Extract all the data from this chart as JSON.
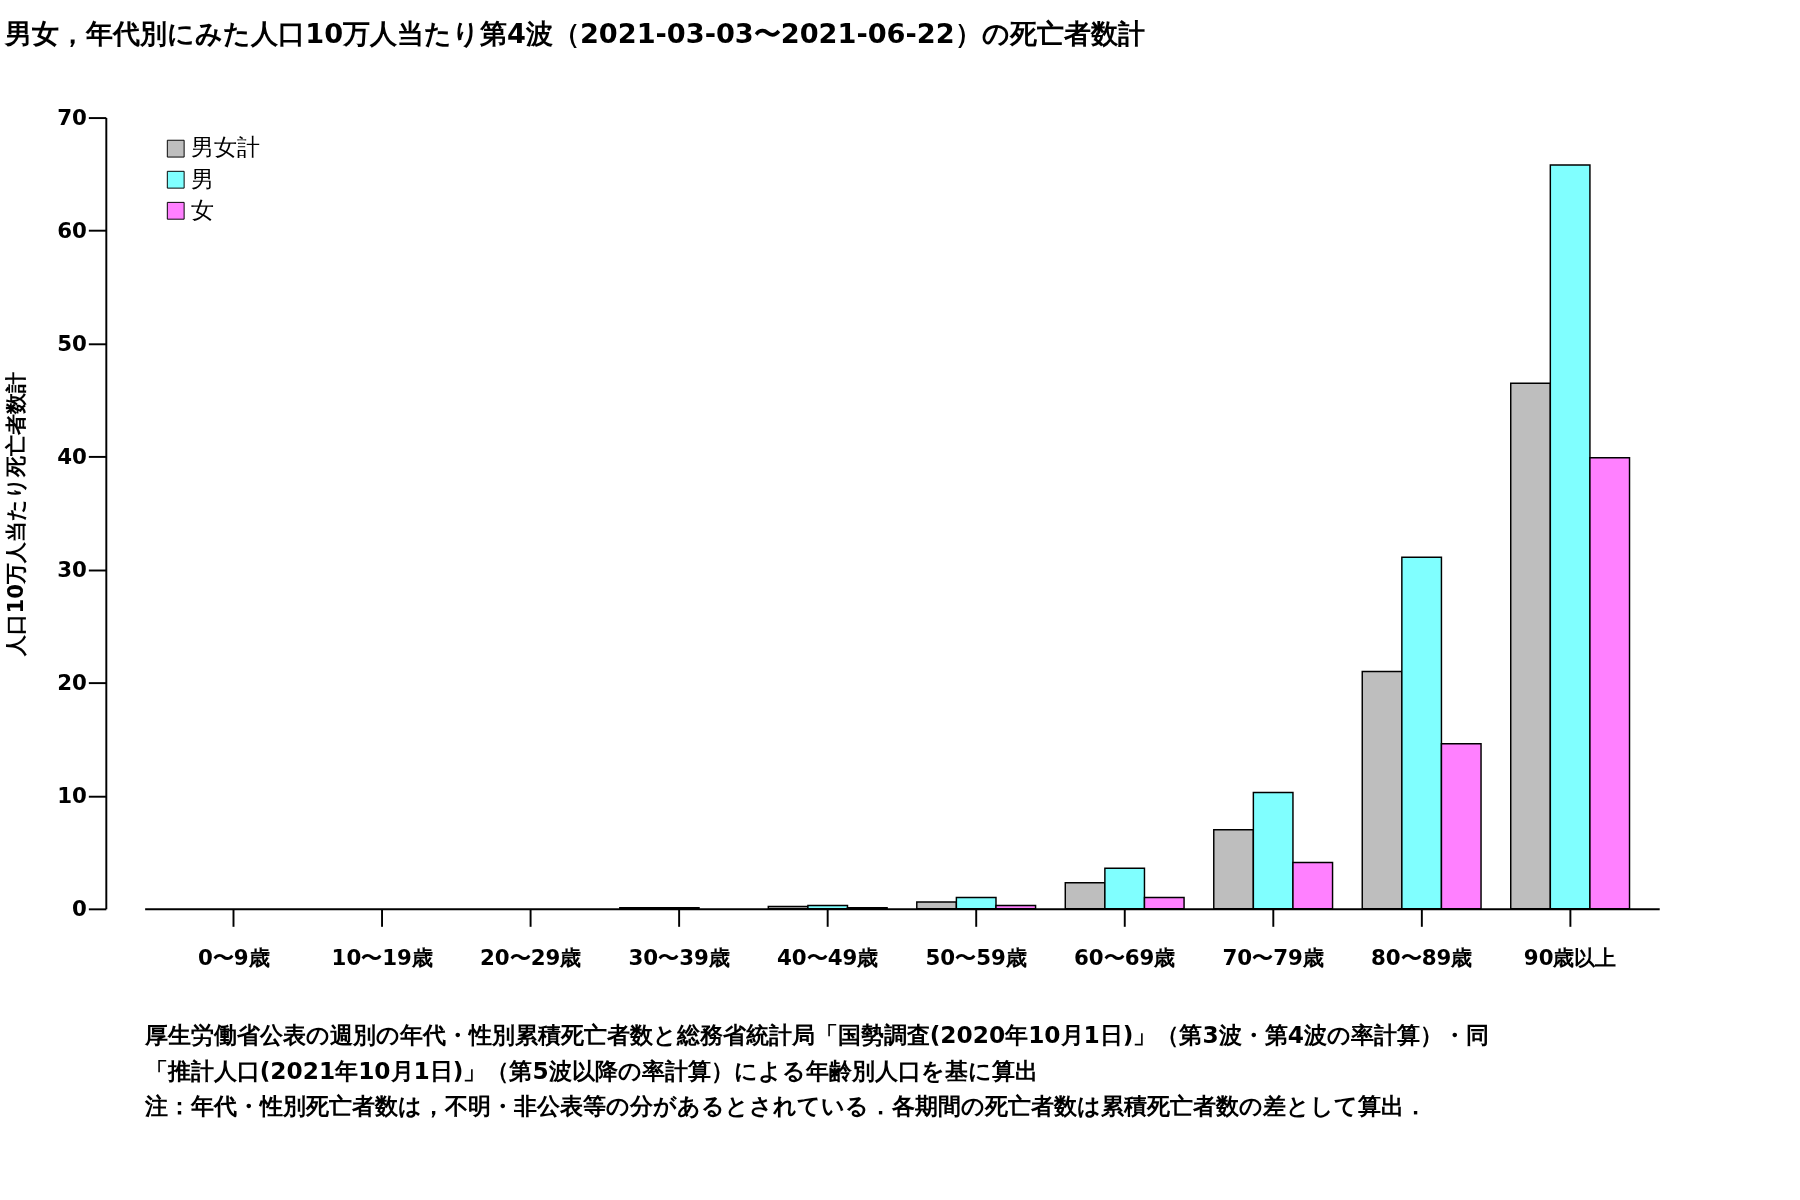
{
  "chart_data": {
    "type": "bar",
    "title": "男女，年代別にみた人口10万人当たり第4波（2021-03-03〜2021-06-22）の死亡者数計",
    "ylabel": "人口10万人当たり死亡者数計",
    "categories": [
      "0〜9歳",
      "10〜19歳",
      "20〜29歳",
      "30〜39歳",
      "40〜49歳",
      "50〜59歳",
      "60〜69歳",
      "70〜79歳",
      "80〜89歳",
      "90歳以上"
    ],
    "series": [
      {
        "name": "男女計",
        "color": "#bebebe",
        "values": [
          0,
          0,
          0,
          0.1,
          0.2,
          0.6,
          2.3,
          7.0,
          21.0,
          46.5
        ]
      },
      {
        "name": "男",
        "color": "#80ffff",
        "values": [
          0,
          0,
          0,
          0.1,
          0.3,
          1.0,
          3.6,
          10.3,
          31.1,
          65.8
        ]
      },
      {
        "name": "女",
        "color": "#ff80ff",
        "values": [
          0,
          0,
          0,
          0,
          0.1,
          0.3,
          1.0,
          4.1,
          14.6,
          39.9
        ]
      }
    ],
    "ylim": [
      0,
      70
    ],
    "yticks": [
      0,
      10,
      20,
      30,
      40,
      50,
      60,
      70
    ],
    "grid": false,
    "legend": "top left",
    "annotations": [
      "厚生労働省公表の週別の年代・性別累積死亡者数と総務省統計局「国勢調査(2020年10月1日)」（第3波・第4波の率計算）・同",
      "「推計人口(2021年10月1日)」（第5波以降の率計算）による年齢別人口を基に算出",
      "注：年代・性別死亡者数は，不明・非公表等の分があるとされている．各期間の死亡者数は累積死亡者数の差として算出．"
    ]
  }
}
